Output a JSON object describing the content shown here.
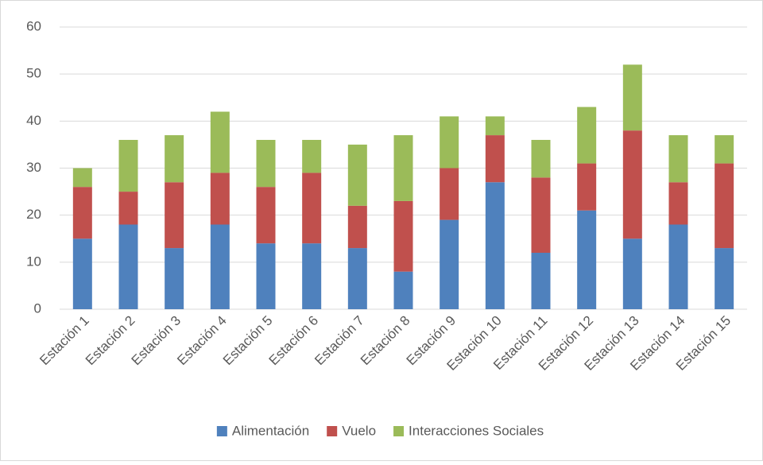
{
  "chart_data": {
    "type": "stacked-bar",
    "categories": [
      "Estación 1",
      "Estación 2",
      "Estación 3",
      "Estación 4",
      "Estación 5",
      "Estación 6",
      "Estación 7",
      "Estación 8",
      "Estación 9",
      "Estación 10",
      "Estación 11",
      "Estación 12",
      "Estación 13",
      "Estación 14",
      "Estación 15"
    ],
    "series": [
      {
        "name": "Alimentación",
        "color": "#4f81bd",
        "values": [
          15,
          18,
          13,
          18,
          14,
          14,
          13,
          8,
          19,
          27,
          12,
          21,
          15,
          18,
          13
        ]
      },
      {
        "name": "Vuelo",
        "color": "#c0504d",
        "values": [
          11,
          7,
          14,
          11,
          12,
          15,
          9,
          15,
          11,
          10,
          16,
          10,
          23,
          9,
          18
        ]
      },
      {
        "name": "Interacciones Sociales",
        "color": "#9bbb59",
        "values": [
          4,
          11,
          10,
          13,
          10,
          7,
          13,
          14,
          11,
          4,
          8,
          12,
          14,
          10,
          6
        ]
      }
    ],
    "ylim": [
      0,
      60
    ],
    "yticks": [
      0,
      10,
      20,
      30,
      40,
      50,
      60
    ],
    "grid": true,
    "legend": "bottom"
  }
}
